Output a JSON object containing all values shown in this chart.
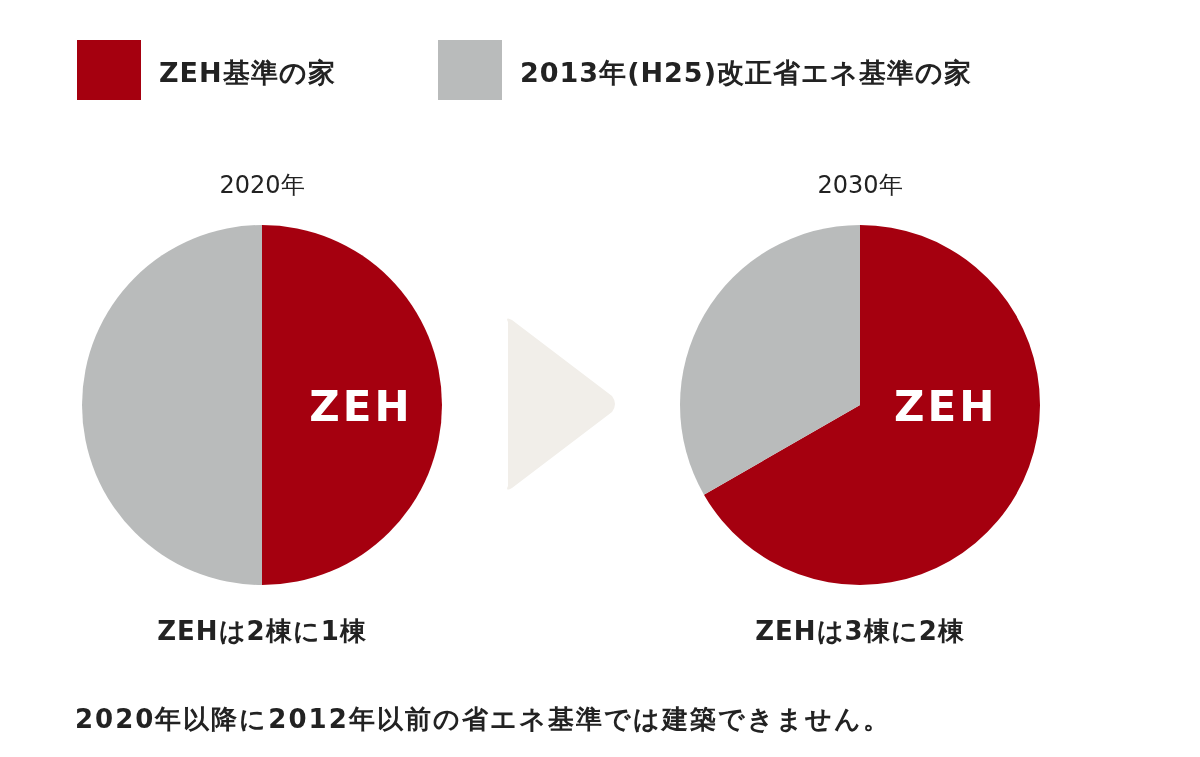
{
  "chart_data": [
    {
      "type": "pie",
      "title": "2020年",
      "categories": [
        "ZEH基準の家",
        "2013年(H25)改正省エネ基準の家"
      ],
      "values": [
        50,
        50
      ],
      "colors": [
        "#a5000f",
        "#b9bbbb"
      ],
      "legend": "top",
      "annotations": [
        "ZEH",
        "ZEHは2棟に1棟"
      ]
    },
    {
      "type": "pie",
      "title": "2030年",
      "categories": [
        null,
        null
      ],
      "values": [
        66.7,
        33.3
      ],
      "colors": [
        "#a5000f",
        "#b9bbbb"
      ],
      "annotations": [
        "ZEH",
        "ZEHは3棟に2棟",
        "2020年以降に2012年以前の省エネ基準では建築できません。"
      ]
    }
  ]
}
